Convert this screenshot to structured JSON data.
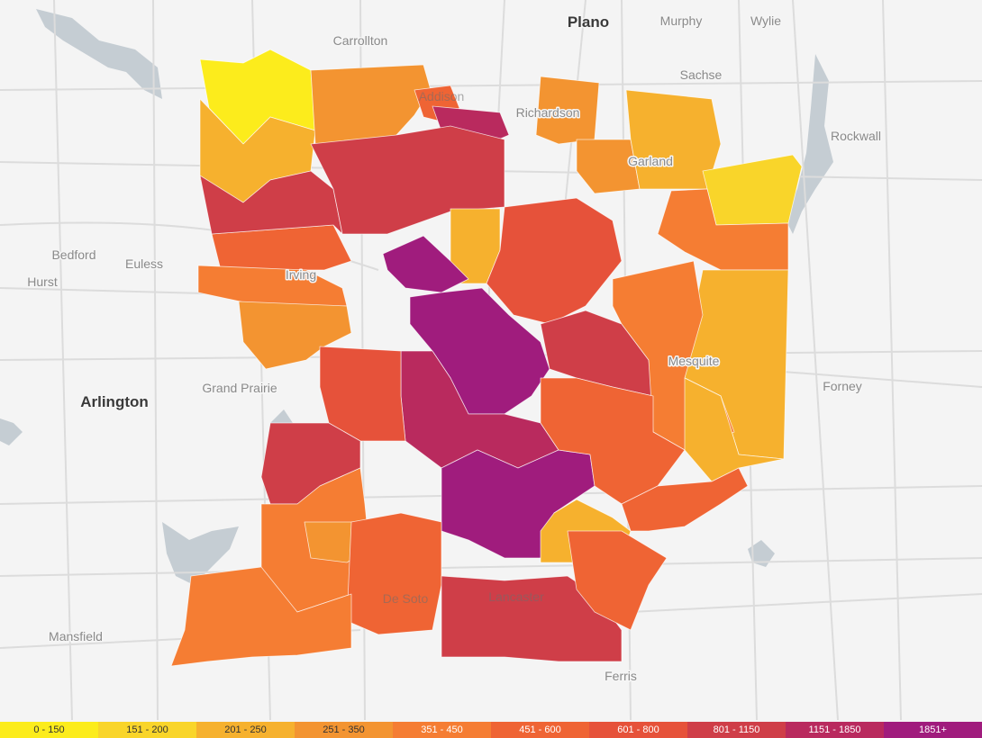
{
  "map": {
    "cities": [
      {
        "name": "Plano",
        "major": true
      },
      {
        "name": "Murphy",
        "major": false
      },
      {
        "name": "Wylie",
        "major": false
      },
      {
        "name": "Carrollton",
        "major": false
      },
      {
        "name": "Sachse",
        "major": false
      },
      {
        "name": "Richardson",
        "major": false
      },
      {
        "name": "Rockwall",
        "major": false
      },
      {
        "name": "Garland",
        "major": false
      },
      {
        "name": "Bedford",
        "major": false
      },
      {
        "name": "Euless",
        "major": false
      },
      {
        "name": "Hurst",
        "major": false
      },
      {
        "name": "Irving",
        "major": false
      },
      {
        "name": "Arlington",
        "major": true
      },
      {
        "name": "Grand Prairie",
        "major": false
      },
      {
        "name": "Mesquite",
        "major": false
      },
      {
        "name": "Forney",
        "major": false
      },
      {
        "name": "Mansfield",
        "major": false
      },
      {
        "name": "De Soto",
        "major": false
      },
      {
        "name": "Lancaster",
        "major": false
      },
      {
        "name": "Ferris",
        "major": false
      },
      {
        "name": "Addison",
        "major": false
      }
    ],
    "colors": {
      "background": "#f4f4f4",
      "water": "#c5cdd3",
      "roads": "#dcdcdc",
      "no_data": "#f6f6f6"
    }
  },
  "legend": {
    "bins": [
      {
        "label": "0 - 150",
        "color": "#fcec1c",
        "text_color": "#333333"
      },
      {
        "label": "151 - 200",
        "color": "#f9d52a",
        "text_color": "#333333"
      },
      {
        "label": "201 - 250",
        "color": "#f6b12e",
        "text_color": "#333333"
      },
      {
        "label": "251 - 350",
        "color": "#f39431",
        "text_color": "#333333"
      },
      {
        "label": "351 - 450",
        "color": "#f57d33",
        "text_color": "#ffffff"
      },
      {
        "label": "451 - 600",
        "color": "#ef6434",
        "text_color": "#ffffff"
      },
      {
        "label": "601 - 800",
        "color": "#e6523a",
        "text_color": "#ffffff"
      },
      {
        "label": "801 - 1150",
        "color": "#cf3e48",
        "text_color": "#ffffff"
      },
      {
        "label": "1151 - 1850",
        "color": "#b92a5e",
        "text_color": "#ffffff"
      },
      {
        "label": "1851+",
        "color": "#a01c7d",
        "text_color": "#ffffff"
      }
    ]
  },
  "zones": [
    {
      "id": "nw-yellow",
      "bin": 0
    },
    {
      "id": "nw-orange",
      "bin": 2
    },
    {
      "id": "carrollton",
      "bin": 3
    },
    {
      "id": "addison-red",
      "bin": 5
    },
    {
      "id": "north-magenta",
      "bin": 8
    },
    {
      "id": "richardson-orange",
      "bin": 3
    },
    {
      "id": "garland-west",
      "bin": 3
    },
    {
      "id": "garland-north",
      "bin": 2
    },
    {
      "id": "rowlett-yellow",
      "bin": 1
    },
    {
      "id": "garland-east",
      "bin": 4
    },
    {
      "id": "east-light",
      "bin": 2
    },
    {
      "id": "irving-north",
      "bin": 5
    },
    {
      "id": "irving-west",
      "bin": 4
    },
    {
      "id": "irving-south",
      "bin": 3
    },
    {
      "id": "northwest-red",
      "bin": 7
    },
    {
      "id": "north-central",
      "bin": 7
    },
    {
      "id": "north-orange-strip",
      "bin": 2
    },
    {
      "id": "love-field",
      "bin": 9
    },
    {
      "id": "downtown",
      "bin": 9
    },
    {
      "id": "lake-area",
      "bin": 6
    },
    {
      "id": "east-red",
      "bin": 7
    },
    {
      "id": "mesquite",
      "bin": 4
    },
    {
      "id": "mesquite-east",
      "bin": 2
    },
    {
      "id": "south-central",
      "bin": 8
    },
    {
      "id": "south-magenta",
      "bin": 9
    },
    {
      "id": "west-red",
      "bin": 6
    },
    {
      "id": "grand-prairie-south",
      "bin": 7
    },
    {
      "id": "se-orange",
      "bin": 5
    },
    {
      "id": "se-yellow",
      "bin": 2
    },
    {
      "id": "cedar-hill",
      "bin": 4
    },
    {
      "id": "cedar-hill-small",
      "bin": 3
    },
    {
      "id": "desoto",
      "bin": 5
    },
    {
      "id": "lancaster",
      "bin": 7
    },
    {
      "id": "lancaster-east",
      "bin": 5
    },
    {
      "id": "southwest",
      "bin": 4
    },
    {
      "id": "se-orange-2",
      "bin": 5
    }
  ]
}
